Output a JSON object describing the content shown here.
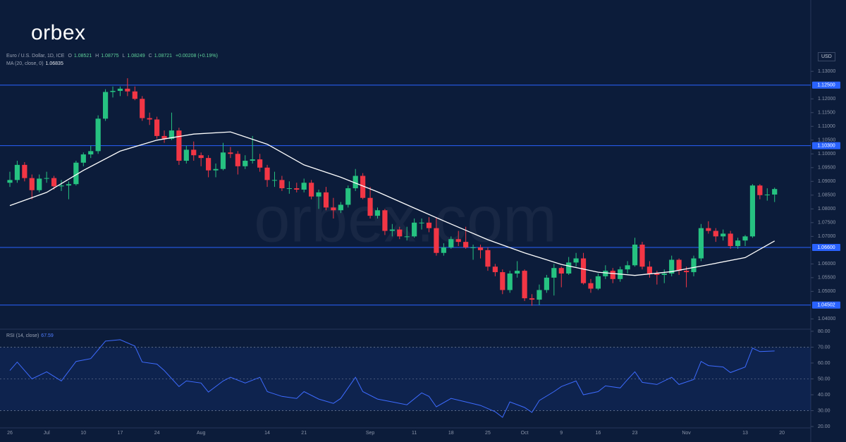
{
  "logo": "orbex",
  "watermark": "orbex.com",
  "currency": "USD",
  "header": {
    "symbol": "Euro / U.S. Dollar, 1D, ICE",
    "ohlc": [
      {
        "label": "O",
        "value": 1.08521
      },
      {
        "label": "H",
        "value": 1.08775
      },
      {
        "label": "L",
        "value": 1.08249
      },
      {
        "label": "C",
        "value": 1.08721
      }
    ],
    "change": "+0.00208 (+0.19%)"
  },
  "chart_data": [
    {
      "type": "candlestick",
      "categories": [
        "26",
        null,
        null,
        null,
        null,
        "Jul",
        null,
        null,
        null,
        null,
        "10",
        null,
        null,
        null,
        null,
        "17",
        null,
        null,
        null,
        null,
        "24",
        null,
        null,
        null,
        null,
        null,
        "Aug",
        null,
        null,
        null,
        null,
        null,
        null,
        null,
        null,
        "14",
        null,
        null,
        null,
        null,
        "21",
        null,
        null,
        null,
        null,
        null,
        null,
        null,
        null,
        "Sep",
        null,
        null,
        null,
        null,
        null,
        "11",
        null,
        null,
        null,
        null,
        "18",
        null,
        null,
        null,
        null,
        "25",
        null,
        null,
        null,
        null,
        "Oct",
        null,
        null,
        null,
        null,
        "9",
        null,
        null,
        null,
        null,
        "16",
        null,
        null,
        null,
        null,
        "23",
        null,
        null,
        null,
        null,
        null,
        null,
        "Nov",
        null,
        null,
        null,
        null,
        null,
        null,
        null,
        "13",
        null,
        null,
        null,
        null,
        "20"
      ],
      "open": [
        1.0895,
        1.0905,
        1.096,
        1.0912,
        1.0868,
        1.091,
        1.0912,
        1.0882,
        1.0885,
        1.089,
        1.0968,
        1.0998,
        1.101,
        1.1128,
        1.1225,
        1.1229,
        1.1237,
        1.1227,
        1.12,
        1.113,
        1.1125,
        1.1065,
        1.1055,
        1.1085,
        1.0975,
        1.1015,
        1.0995,
        1.0985,
        1.094,
        1.0945,
        1.1005,
        1.1,
        1.0955,
        1.0975,
        1.098,
        1.095,
        1.0905,
        1.0905,
        1.0875,
        1.0875,
        1.087,
        1.0895,
        1.0845,
        1.086,
        1.0805,
        1.0795,
        1.0815,
        1.0875,
        1.092,
        1.084,
        1.0775,
        1.0795,
        1.072,
        1.0725,
        1.07,
        1.07,
        1.075,
        1.075,
        1.073,
        1.064,
        1.066,
        1.069,
        1.068,
        1.066,
        1.066,
        1.065,
        1.059,
        1.057,
        1.0505,
        1.0565,
        1.0575,
        1.0475,
        1.047,
        1.0505,
        1.055,
        1.0585,
        1.0565,
        1.0605,
        1.062,
        1.053,
        1.051,
        1.0555,
        1.0575,
        1.0545,
        1.058,
        1.0595,
        1.067,
        1.059,
        1.0565,
        1.056,
        1.0565,
        1.0615,
        1.0575,
        1.057,
        1.062,
        1.073,
        1.072,
        1.07,
        1.071,
        1.0665,
        1.0685,
        1.07,
        1.0885,
        1.085,
        1.08521,
        null
      ],
      "high": [
        1.0935,
        1.0975,
        1.097,
        1.0925,
        1.0925,
        1.0935,
        1.092,
        1.0905,
        1.09,
        1.0975,
        1.1005,
        1.103,
        1.114,
        1.1235,
        1.1245,
        1.1245,
        1.1275,
        1.1245,
        1.121,
        1.115,
        1.1135,
        1.1085,
        1.115,
        1.1095,
        1.103,
        1.1045,
        1.1005,
        1.0995,
        1.0965,
        1.104,
        1.1025,
        1.101,
        1.0995,
        1.1065,
        1.1,
        1.096,
        1.0935,
        1.092,
        1.09,
        1.0895,
        1.091,
        1.0905,
        1.087,
        1.088,
        1.084,
        1.0825,
        1.0885,
        1.0945,
        1.093,
        1.088,
        1.0805,
        1.08,
        1.0745,
        1.0735,
        1.0735,
        1.0765,
        1.0765,
        1.077,
        1.077,
        1.0675,
        1.07,
        1.072,
        1.0735,
        1.067,
        1.067,
        1.066,
        1.06,
        1.058,
        1.0575,
        1.061,
        1.058,
        1.049,
        1.0525,
        1.056,
        1.06,
        1.059,
        1.0625,
        1.064,
        1.064,
        1.0545,
        1.0565,
        1.0595,
        1.0585,
        1.059,
        1.061,
        1.0695,
        1.068,
        1.061,
        1.0575,
        1.058,
        1.063,
        1.062,
        1.059,
        1.063,
        1.0745,
        1.0755,
        1.073,
        1.0725,
        1.072,
        1.0695,
        1.0705,
        1.089,
        1.089,
        1.0875,
        1.08775,
        null
      ],
      "low": [
        1.088,
        1.0895,
        1.09,
        1.0835,
        1.086,
        1.0895,
        1.087,
        1.0865,
        1.0835,
        1.0885,
        1.0955,
        1.0985,
        1.1,
        1.112,
        1.1205,
        1.121,
        1.121,
        1.1195,
        1.112,
        1.1105,
        1.1055,
        1.104,
        1.105,
        1.096,
        1.0965,
        1.0975,
        1.0955,
        1.0915,
        1.0915,
        1.094,
        1.0985,
        1.0925,
        1.0945,
        1.0965,
        1.0935,
        1.088,
        1.088,
        1.0865,
        1.0855,
        1.086,
        1.086,
        1.0835,
        1.08,
        1.0795,
        1.0765,
        1.0785,
        1.0805,
        1.0865,
        1.0835,
        1.0765,
        1.0765,
        1.0705,
        1.07,
        1.069,
        1.0685,
        1.0695,
        1.0725,
        1.0715,
        1.063,
        1.063,
        1.0655,
        1.0665,
        1.0655,
        1.0615,
        1.062,
        1.0575,
        1.0555,
        1.049,
        1.0495,
        1.055,
        1.0465,
        1.0448,
        1.045,
        1.0495,
        1.0485,
        1.0515,
        1.056,
        1.059,
        1.0525,
        1.0495,
        1.0505,
        1.0545,
        1.053,
        1.0535,
        1.0565,
        1.059,
        1.058,
        1.055,
        1.0525,
        1.053,
        1.0555,
        1.056,
        1.0515,
        1.0555,
        1.061,
        1.071,
        1.068,
        1.0685,
        1.0655,
        1.0655,
        1.0665,
        1.0695,
        1.0835,
        1.083,
        1.08249,
        null
      ],
      "close": [
        1.0905,
        1.096,
        1.0912,
        1.0868,
        1.091,
        1.0912,
        1.0882,
        1.0885,
        1.089,
        1.0968,
        1.0998,
        1.101,
        1.1128,
        1.1225,
        1.1229,
        1.1237,
        1.1227,
        1.12,
        1.113,
        1.1125,
        1.1065,
        1.1055,
        1.1085,
        1.0975,
        1.1015,
        1.0995,
        1.0985,
        1.094,
        1.0945,
        1.1005,
        1.1,
        1.0955,
        1.0975,
        1.098,
        1.095,
        1.0905,
        1.0905,
        1.0875,
        1.0875,
        1.087,
        1.0895,
        1.0845,
        1.086,
        1.0805,
        1.0795,
        1.0815,
        1.0875,
        1.092,
        1.084,
        1.0775,
        1.0795,
        1.072,
        1.0725,
        1.07,
        1.07,
        1.075,
        1.075,
        1.073,
        1.064,
        1.066,
        1.069,
        1.068,
        1.066,
        1.066,
        1.065,
        1.059,
        1.057,
        1.0505,
        1.0565,
        1.0575,
        1.0475,
        1.047,
        1.0505,
        1.055,
        1.0585,
        1.0565,
        1.0605,
        1.062,
        1.053,
        1.051,
        1.0555,
        1.0575,
        1.0545,
        1.058,
        1.0595,
        1.067,
        1.059,
        1.0565,
        1.056,
        1.0565,
        1.0615,
        1.0575,
        1.057,
        1.062,
        1.073,
        1.072,
        1.07,
        1.071,
        1.0665,
        1.0685,
        1.07,
        1.0885,
        1.085,
        1.0852,
        1.08721,
        null
      ],
      "up_color": "#26c281",
      "down_color": "#f23645",
      "ylim": [
        1.036,
        1.138
      ],
      "yticks": [
        {
          "value": 1.04,
          "label": "1.04000"
        },
        {
          "value": 1.05,
          "label": "1.05000"
        },
        {
          "value": 1.055,
          "label": "1.05500"
        },
        {
          "value": 1.06,
          "label": "1.06000"
        },
        {
          "value": 1.07,
          "label": "1.07000"
        },
        {
          "value": 1.075,
          "label": "1.07500"
        },
        {
          "value": 1.08,
          "label": "1.08000"
        },
        {
          "value": 1.085,
          "label": "1.08500"
        },
        {
          "value": 1.09,
          "label": "1.09000"
        },
        {
          "value": 1.095,
          "label": "1.09500"
        },
        {
          "value": 1.1,
          "label": "1.10000"
        },
        {
          "value": 1.105,
          "label": "1.10500"
        },
        {
          "value": 1.11,
          "label": "1.11000"
        },
        {
          "value": 1.115,
          "label": "1.11500"
        },
        {
          "value": 1.12,
          "label": "1.12000"
        },
        {
          "value": 1.13,
          "label": "1.13000"
        }
      ],
      "levels": [
        {
          "value": 1.125,
          "label": "1.12500"
        },
        {
          "value": 1.103,
          "label": "1.10300"
        },
        {
          "value": 1.066,
          "label": "1.06600"
        },
        {
          "value": 1.04502,
          "label": "1.04502"
        }
      ],
      "level_color": "#2962ff",
      "ma": {
        "name": "MA (20, close, 0)",
        "last": 1.06835,
        "color": "#ffffff",
        "x": [
          0,
          5,
          10,
          15,
          20,
          25,
          30,
          35,
          40,
          45,
          50,
          55,
          60,
          65,
          70,
          75,
          80,
          85,
          90,
          95,
          100,
          104
        ],
        "values": [
          1.0812,
          1.086,
          1.094,
          1.101,
          1.105,
          1.1072,
          1.108,
          1.1035,
          1.096,
          1.0915,
          1.0862,
          1.0803,
          1.0745,
          1.0688,
          1.064,
          1.0598,
          1.057,
          1.0558,
          1.0572,
          1.0597,
          1.0623,
          1.06835
        ]
      }
    },
    {
      "type": "line",
      "name": "RSI (14, close)",
      "last": 67.59,
      "color": "#3d6bff",
      "x": [
        0,
        1,
        3,
        5,
        7,
        9,
        11,
        13,
        15,
        17,
        18,
        20,
        21,
        23,
        24,
        26,
        27,
        29,
        30,
        32,
        34,
        35,
        37,
        39,
        40,
        42,
        44,
        45,
        47,
        48,
        50,
        52,
        54,
        56,
        57,
        58,
        60,
        62,
        64,
        66,
        67,
        68,
        70,
        71,
        72,
        74,
        75,
        77,
        78,
        80,
        81,
        83,
        84,
        85,
        86,
        88,
        90,
        91,
        93,
        94,
        95,
        97,
        98,
        100,
        101,
        102,
        104
      ],
      "values": [
        55.3,
        60.6,
        50,
        54.5,
        48.7,
        61,
        62.8,
        73.8,
        74.7,
        70.7,
        60.6,
        59.3,
        55.3,
        45.2,
        48.7,
        47.4,
        41.7,
        48.7,
        51,
        47.4,
        51,
        42,
        39,
        37.7,
        42,
        37.3,
        34.6,
        37.7,
        51,
        42,
        37.3,
        35.5,
        33.7,
        41.2,
        39,
        32.4,
        37.7,
        35.5,
        33.3,
        29.3,
        25.8,
        35.5,
        32,
        28.9,
        36.4,
        42,
        45.2,
        48.7,
        40,
        42,
        45.6,
        44.3,
        49.6,
        54.5,
        47.8,
        46.5,
        51,
        46.5,
        49.6,
        61,
        58.4,
        57.5,
        54,
        57.5,
        69.4,
        67.2,
        67.59
      ],
      "ylim": [
        17.8,
        81.3
      ],
      "yticks": [
        {
          "value": 20,
          "label": "20.00"
        },
        {
          "value": 30,
          "label": "30.00"
        },
        {
          "value": 40,
          "label": "40.00"
        },
        {
          "value": 50,
          "label": "50.00"
        },
        {
          "value": 60,
          "label": "60.00"
        },
        {
          "value": 70,
          "label": "70.00"
        },
        {
          "value": 80,
          "label": "80.00"
        }
      ],
      "band": [
        30,
        70
      ],
      "midline": 50
    }
  ]
}
